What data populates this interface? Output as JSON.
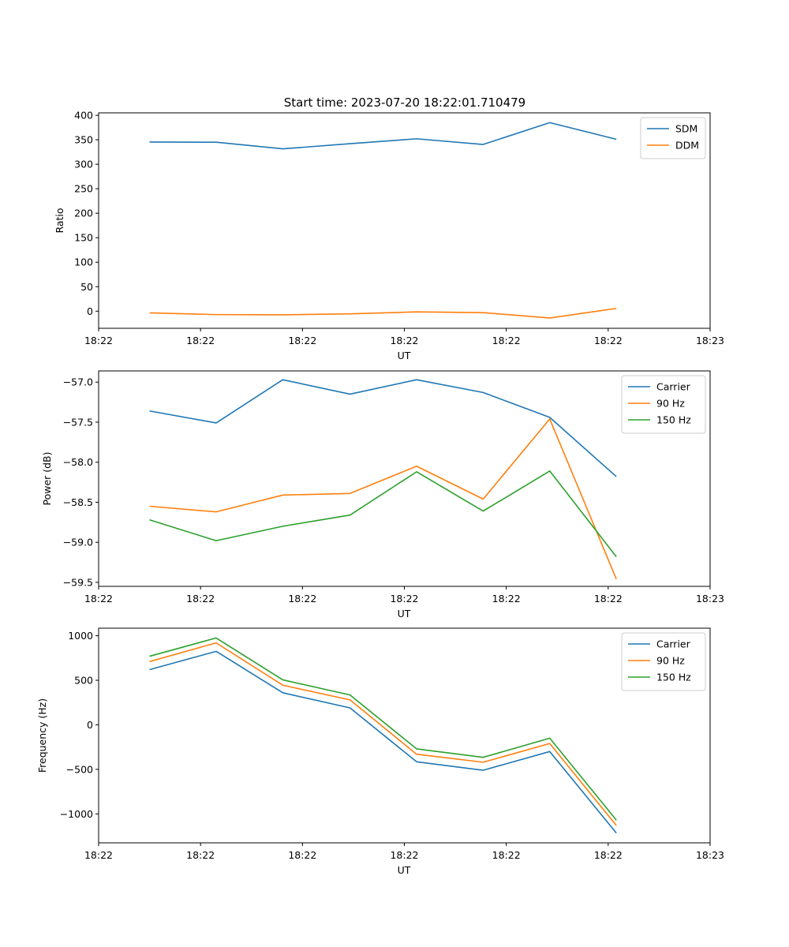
{
  "figure_title": "Start time: 2023-07-20 18:22:01.710479",
  "colors": {
    "blue": "#1f77b4",
    "orange": "#ff7f0e",
    "green": "#2ca02c"
  },
  "chart_data": [
    {
      "type": "line",
      "title": "Start time: 2023-07-20 18:22:01.710479",
      "xlabel": "UT",
      "ylabel": "Ratio",
      "xlim": [
        0,
        9
      ],
      "ylim": [
        -35,
        405
      ],
      "x_ticks": [
        0,
        1.5,
        3,
        4.5,
        6,
        7.5,
        9
      ],
      "x_tick_labels": [
        "18:22",
        "18:22",
        "18:22",
        "18:22",
        "18:22",
        "18:22",
        "18:23"
      ],
      "y_ticks": [
        0,
        50,
        100,
        150,
        200,
        250,
        300,
        350,
        400
      ],
      "y_tick_labels": [
        "0",
        "50",
        "100",
        "150",
        "200",
        "250",
        "300",
        "350",
        "400"
      ],
      "legend_position": "top-right",
      "x": [
        0.75,
        1.73,
        2.71,
        3.7,
        4.68,
        5.66,
        6.64,
        7.62
      ],
      "series": [
        {
          "name": "SDM",
          "color": "#1f77b4",
          "values": [
            345.5,
            345.0,
            331.5,
            342.0,
            352.0,
            340.5,
            385.0,
            351.0
          ]
        },
        {
          "name": "DDM",
          "color": "#ff7f0e",
          "values": [
            -3.5,
            -7.0,
            -7.5,
            -5.5,
            -1.5,
            -3.0,
            -14.0,
            5.5
          ]
        }
      ]
    },
    {
      "type": "line",
      "title": "",
      "xlabel": "UT",
      "ylabel": "Power (dB)",
      "xlim": [
        0,
        9
      ],
      "ylim": [
        -59.55,
        -56.86
      ],
      "x_ticks": [
        0,
        1.5,
        3,
        4.5,
        6,
        7.5,
        9
      ],
      "x_tick_labels": [
        "18:22",
        "18:22",
        "18:22",
        "18:22",
        "18:22",
        "18:22",
        "18:23"
      ],
      "y_ticks": [
        -59.5,
        -59.0,
        -58.5,
        -58.0,
        -57.5,
        -57.0
      ],
      "y_tick_labels": [
        "−59.5",
        "−59.0",
        "−58.5",
        "−58.0",
        "−57.5",
        "−57.0"
      ],
      "legend_position": "top-right",
      "x": [
        0.75,
        1.73,
        2.71,
        3.7,
        4.68,
        5.66,
        6.64,
        7.62
      ],
      "series": [
        {
          "name": "Carrier",
          "color": "#1f77b4",
          "values": [
            -57.36,
            -57.51,
            -56.97,
            -57.15,
            -56.97,
            -57.13,
            -57.44,
            -58.18
          ]
        },
        {
          "name": "90 Hz",
          "color": "#ff7f0e",
          "values": [
            -58.55,
            -58.62,
            -58.41,
            -58.39,
            -58.05,
            -58.46,
            -57.46,
            -59.46
          ]
        },
        {
          "name": "150 Hz",
          "color": "#2ca02c",
          "values": [
            -58.72,
            -58.98,
            -58.8,
            -58.66,
            -58.12,
            -58.61,
            -58.11,
            -59.18
          ]
        }
      ]
    },
    {
      "type": "line",
      "title": "",
      "xlabel": "UT",
      "ylabel": "Frequency (Hz)",
      "xlim": [
        0,
        9
      ],
      "ylim": [
        -1325,
        1085
      ],
      "x_ticks": [
        0,
        1.5,
        3,
        4.5,
        6,
        7.5,
        9
      ],
      "x_tick_labels": [
        "18:22",
        "18:22",
        "18:22",
        "18:22",
        "18:22",
        "18:22",
        "18:23"
      ],
      "y_ticks": [
        -1000,
        -500,
        0,
        500,
        1000
      ],
      "y_tick_labels": [
        "−1000",
        "−500",
        "0",
        "500",
        "1000"
      ],
      "legend_position": "top-right",
      "x": [
        0.75,
        1.73,
        2.71,
        3.7,
        4.68,
        5.66,
        6.64,
        7.62
      ],
      "series": [
        {
          "name": "Carrier",
          "color": "#1f77b4",
          "values": [
            620,
            825,
            360,
            190,
            -415,
            -510,
            -300,
            -1215
          ]
        },
        {
          "name": "90 Hz",
          "color": "#ff7f0e",
          "values": [
            710,
            920,
            445,
            280,
            -330,
            -420,
            -210,
            -1130
          ]
        },
        {
          "name": "150 Hz",
          "color": "#2ca02c",
          "values": [
            770,
            975,
            505,
            335,
            -270,
            -365,
            -150,
            -1070
          ]
        }
      ]
    }
  ]
}
